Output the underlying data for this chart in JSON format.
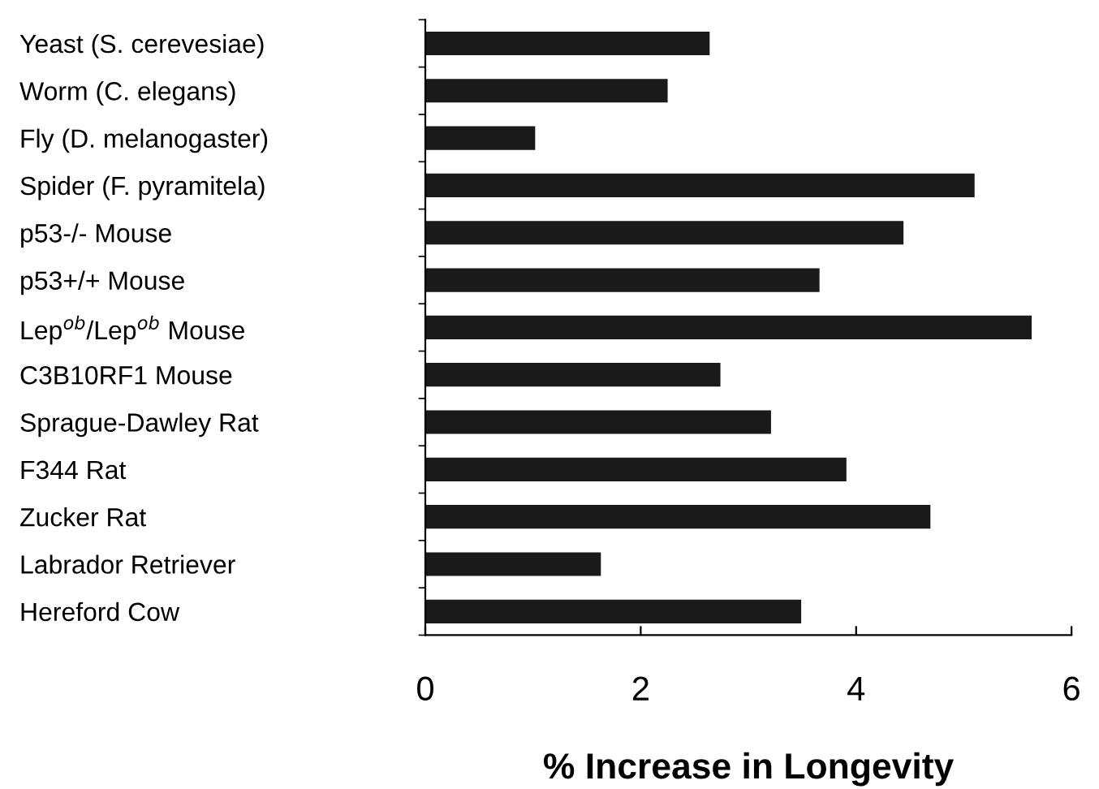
{
  "chart_data": {
    "type": "bar",
    "orientation": "horizontal",
    "xlabel": "% Increase in Longevity",
    "categories": [
      "Yeast (S. cerevesiae)",
      "Worm (C. elegans)",
      "Fly (D. melanogaster)",
      "Spider (F. pyramitela)",
      "p53-/- Mouse",
      "p53+/+ Mouse",
      "Lep$^{ob}$/Lep$^{ob}$ Mouse",
      "C3B10RF1 Mouse",
      "Sprague-Dawley Rat",
      "F344 Rat",
      "Zucker Rat",
      "Labrador Retriever",
      "Hereford Cow"
    ],
    "values": [
      2.64,
      2.25,
      1.02,
      5.1,
      4.44,
      3.66,
      5.63,
      2.74,
      3.21,
      3.91,
      4.69,
      1.63,
      3.49
    ],
    "color": "#1a1a1a",
    "xlim": [
      0,
      6
    ],
    "xticks": [
      0,
      2,
      4,
      6
    ],
    "grid": false
  }
}
